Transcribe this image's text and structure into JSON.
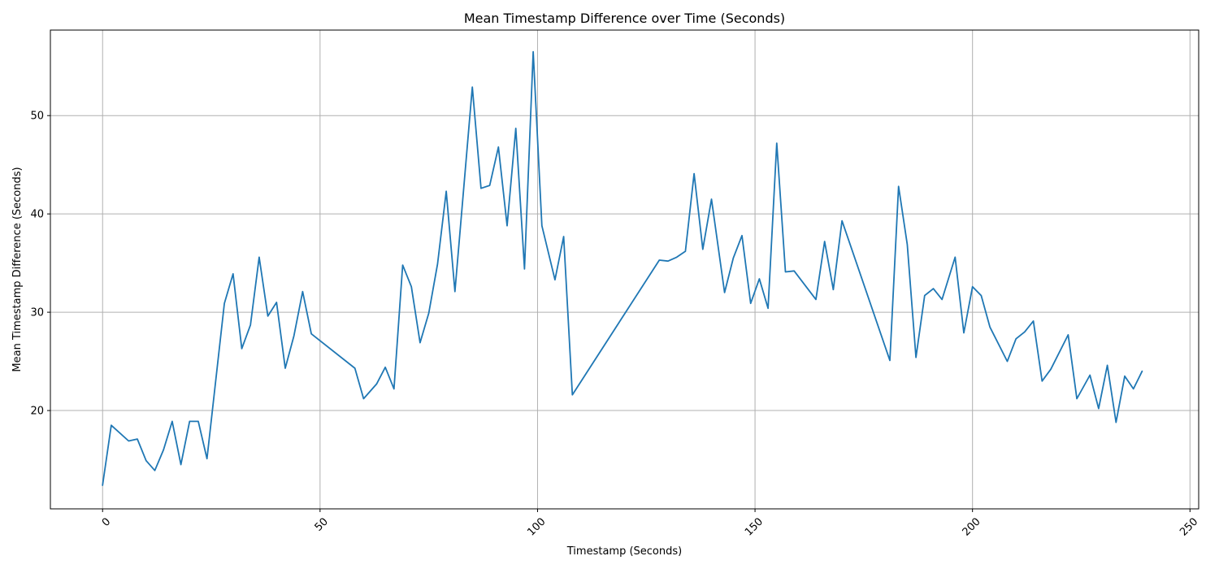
{
  "chart_data": {
    "type": "line",
    "title": "Mean Timestamp Difference over Time (Seconds)",
    "xlabel": "Timestamp (Seconds)",
    "ylabel": "Mean Timestamp Difference (Seconds)",
    "xlim": [
      -12,
      252
    ],
    "ylim": [
      10,
      58.7
    ],
    "xticks": [
      0,
      50,
      100,
      150,
      200,
      250
    ],
    "xtick_labels": [
      "0",
      "50",
      "100",
      "150",
      "200",
      "250"
    ],
    "xtick_rotation": -45,
    "yticks": [
      20,
      30,
      40,
      50
    ],
    "ytick_labels": [
      "20",
      "30",
      "40",
      "50"
    ],
    "grid": true,
    "colors": {
      "series": "#1f77b4",
      "grid": "#b0b0b0",
      "frame": "#000000"
    },
    "series": [
      {
        "x": [
          0,
          2,
          6,
          8,
          10,
          12,
          14,
          16,
          18,
          20,
          22,
          24,
          28,
          30,
          32,
          34,
          36,
          38,
          40,
          42,
          44,
          46,
          48,
          58,
          60,
          63,
          65,
          67,
          69,
          71,
          73,
          75,
          77,
          79,
          81,
          85,
          87,
          89,
          91,
          93,
          95,
          97,
          99,
          101,
          104,
          106,
          108,
          128,
          130,
          132,
          134,
          136,
          138,
          140,
          143,
          145,
          147,
          149,
          151,
          153,
          155,
          157,
          159,
          164,
          166,
          168,
          170,
          181,
          183,
          185,
          187,
          189,
          191,
          193,
          196,
          198,
          200,
          202,
          204,
          208,
          210,
          212,
          214,
          216,
          218,
          222,
          224,
          227,
          229,
          231,
          233,
          235,
          237,
          239
        ],
        "y": [
          12.4,
          18.5,
          16.9,
          17.1,
          14.9,
          13.9,
          16.0,
          18.9,
          14.5,
          18.9,
          18.9,
          15.1,
          30.9,
          33.9,
          26.3,
          28.7,
          35.6,
          29.6,
          31.0,
          24.3,
          27.6,
          32.1,
          27.8,
          24.3,
          21.2,
          22.7,
          24.4,
          22.2,
          34.8,
          32.6,
          26.9,
          29.9,
          34.9,
          42.3,
          32.1,
          52.9,
          42.6,
          42.9,
          46.8,
          38.8,
          48.7,
          34.4,
          56.5,
          38.8,
          33.3,
          37.7,
          21.6,
          35.3,
          35.2,
          35.6,
          36.2,
          44.1,
          36.4,
          41.5,
          32.0,
          35.5,
          37.8,
          30.9,
          33.4,
          30.4,
          47.2,
          34.1,
          34.2,
          31.3,
          37.2,
          32.3,
          39.3,
          25.1,
          42.8,
          36.9,
          25.4,
          31.7,
          32.4,
          31.3,
          35.6,
          27.9,
          32.6,
          31.7,
          28.5,
          25.0,
          27.3,
          28.0,
          29.1,
          23.0,
          24.2,
          27.7,
          21.2,
          23.6,
          20.2,
          24.6,
          18.8,
          23.5,
          22.2,
          24.0
        ]
      }
    ]
  }
}
